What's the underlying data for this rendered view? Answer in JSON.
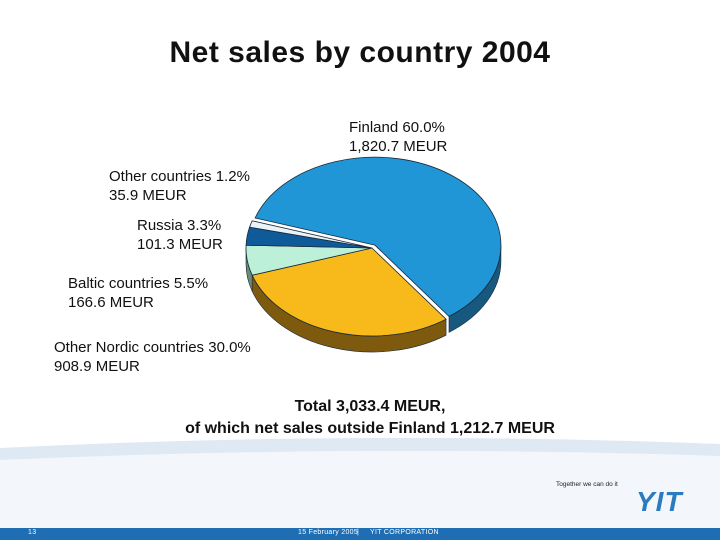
{
  "title": "Net sales by country 2004",
  "chart_data": {
    "type": "pie",
    "title": "Net sales by country 2004",
    "unit": "MEUR",
    "slices": [
      {
        "name": "Finland",
        "percent": 60.0,
        "value": 1820.7,
        "pct_text": "Finland 60.0%",
        "value_text": "1,820.7 MEUR",
        "color": "#2196d6",
        "side": "#16587e"
      },
      {
        "name": "Other Nordic countries",
        "percent": 30.0,
        "value": 908.9,
        "pct_text": "Other Nordic countries 30.0%",
        "value_text": "908.9 MEUR",
        "color": "#f8b91a",
        "side": "#7e5a0f"
      },
      {
        "name": "Baltic countries",
        "percent": 5.5,
        "value": 166.6,
        "pct_text": "Baltic countries 5.5%",
        "value_text": "166.6 MEUR",
        "color": "#bdf0d8",
        "side": "#6a8a7a"
      },
      {
        "name": "Russia",
        "percent": 3.3,
        "value": 101.3,
        "pct_text": "Russia 3.3%",
        "value_text": "101.3 MEUR",
        "color": "#0f5b9a",
        "side": "#083a66"
      },
      {
        "name": "Other countries",
        "percent": 1.2,
        "value": 35.9,
        "pct_text": "Other countries 1.2%",
        "value_text": "35.9 MEUR",
        "color": "#eaf3fa",
        "side": "#8aa6bd"
      }
    ]
  },
  "total": {
    "line1": "Total 3,033.4 MEUR,",
    "line2": "of which net sales outside Finland 1,212.7 MEUR"
  },
  "footer": {
    "tagline": "Together we can do it",
    "logo": "YIT",
    "page": "13",
    "date": "15 February 2005",
    "separator": "|",
    "company": "YIT CORPORATION"
  }
}
